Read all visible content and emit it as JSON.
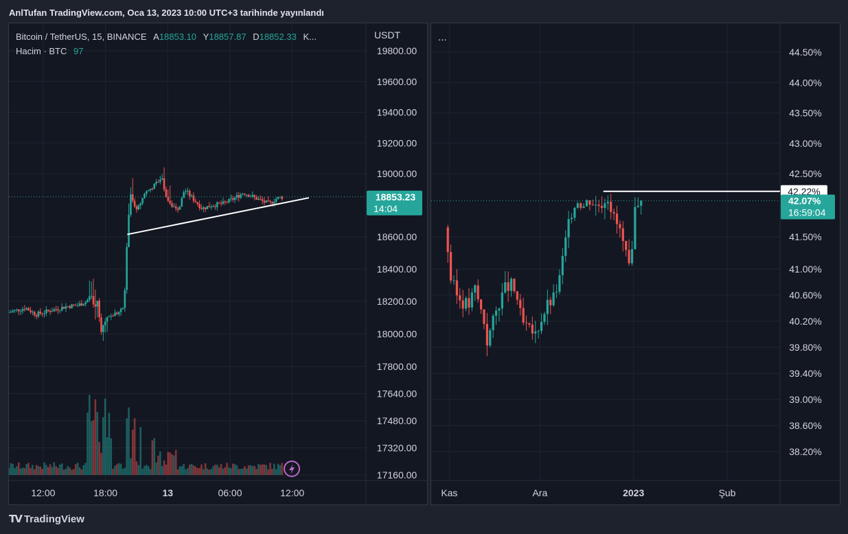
{
  "header": {
    "title": "AnlTufan TradingView.com, Oca 13, 2023 10:00 UTC+3 tarihinde yayınlandı"
  },
  "footer": {
    "logo_text": "TradingView"
  },
  "left": {
    "symbol": "Bitcoin / TetherUS, 15, BINANCE",
    "ohlc": [
      {
        "label": "A",
        "value": "18853.10"
      },
      {
        "label": "Y",
        "value": "18857.87"
      },
      {
        "label": "D",
        "value": "18852.33"
      },
      {
        "label": "K...",
        "value": ""
      }
    ],
    "volume_label": "Hacim · BTC",
    "volume_value": "97",
    "currency": "USDT",
    "price_badge": "18853.23",
    "countdown": "14:04",
    "icon": "lightning-icon"
  },
  "right": {
    "menu_dots": "...",
    "level_badge": "42.22%",
    "price_badge": "42.07%",
    "countdown": "16:59:04"
  },
  "colors": {
    "up": "#26a69a",
    "down": "#ef5350",
    "background": "#131722",
    "grid": "#1f2430"
  },
  "chart_data": [
    {
      "type": "candlestick",
      "symbol": "Bitcoin / TetherUS",
      "timeframe": "15",
      "exchange": "BINANCE",
      "y_ticks": [
        19800,
        19600,
        19400,
        19200,
        19000,
        18600,
        18400,
        18200,
        18000,
        17800,
        17640,
        17480,
        17320,
        17160
      ],
      "y_tick_labels": [
        "19800.00",
        "19600.00",
        "19400.00",
        "19200.00",
        "19000.00",
        "18600.00",
        "18400.00",
        "18200.00",
        "18000.00",
        "17800.00",
        "17640.00",
        "17480.00",
        "17320.00",
        "17160.00"
      ],
      "x_ticks": [
        12,
        18,
        24,
        30,
        36
      ],
      "x_tick_labels": [
        "12:00",
        "18:00",
        "13",
        "06:00",
        "12:00"
      ],
      "x_range": [
        8.7,
        43.1
      ],
      "last_price": 18853.23,
      "trendline": {
        "start": {
          "x": 20.1,
          "price": 18615
        },
        "end": {
          "x": 37.6,
          "price": 18847
        }
      },
      "price_anchors": [
        [
          8.7,
          18130
        ],
        [
          10.5,
          18160
        ],
        [
          11.5,
          18120
        ],
        [
          13.0,
          18145
        ],
        [
          14.5,
          18170
        ],
        [
          15.5,
          18175
        ],
        [
          16.4,
          18200
        ],
        [
          16.8,
          18250
        ],
        [
          17.1,
          18140
        ],
        [
          17.4,
          18200
        ],
        [
          17.8,
          18020
        ],
        [
          18.3,
          18100
        ],
        [
          19.0,
          18120
        ],
        [
          19.7,
          18140
        ],
        [
          20.0,
          18180
        ],
        [
          20.3,
          18620
        ],
        [
          20.6,
          18870
        ],
        [
          21.2,
          18760
        ],
        [
          22.0,
          18880
        ],
        [
          23.0,
          18930
        ],
        [
          23.6,
          18980
        ],
        [
          24.0,
          18860
        ],
        [
          24.5,
          18800
        ],
        [
          25.3,
          18780
        ],
        [
          25.8,
          18900
        ],
        [
          26.5,
          18850
        ],
        [
          27.5,
          18780
        ],
        [
          28.5,
          18800
        ],
        [
          29.5,
          18810
        ],
        [
          30.5,
          18840
        ],
        [
          31.5,
          18880
        ],
        [
          32.5,
          18850
        ],
        [
          33.5,
          18820
        ],
        [
          34.0,
          18810
        ],
        [
          34.6,
          18840
        ],
        [
          35.1,
          18850
        ]
      ],
      "volume_max_btc": 1280
    },
    {
      "type": "candlestick",
      "unit": "%",
      "y_ticks": [
        44.5,
        44.0,
        43.5,
        43.0,
        42.5,
        41.5,
        41.0,
        40.6,
        40.2,
        39.8,
        39.4,
        39.0,
        38.6,
        38.2
      ],
      "y_tick_labels": [
        "44.50%",
        "44.00%",
        "43.50%",
        "43.00%",
        "42.50%",
        "41.50%",
        "41.00%",
        "40.60%",
        "40.20%",
        "39.80%",
        "39.40%",
        "39.00%",
        "38.60%",
        "38.20%"
      ],
      "x_ticks": [
        0.5,
        30.5,
        61.5,
        92.5
      ],
      "x_tick_labels": [
        "Kas",
        "Ara",
        "2023",
        "Şub"
      ],
      "x_range": [
        -5.5,
        110
      ],
      "last_value": 42.07,
      "resistance_level": 42.22,
      "resistance_x_range": [
        51.5,
        110
      ],
      "value_anchors": [
        [
          0,
          41.65
        ],
        [
          1,
          41.3
        ],
        [
          2,
          40.85
        ],
        [
          4,
          40.6
        ],
        [
          6,
          40.5
        ],
        [
          8,
          40.45
        ],
        [
          10,
          40.7
        ],
        [
          13,
          40.2
        ],
        [
          14,
          39.9
        ],
        [
          16,
          40.2
        ],
        [
          18,
          40.5
        ],
        [
          20,
          40.7
        ],
        [
          22,
          40.75
        ],
        [
          24,
          40.55
        ],
        [
          25,
          40.3
        ],
        [
          26,
          40.15
        ],
        [
          28,
          40.05
        ],
        [
          30,
          40.0
        ],
        [
          32,
          40.25
        ],
        [
          34,
          40.45
        ],
        [
          36,
          40.55
        ],
        [
          38,
          40.85
        ],
        [
          40,
          41.45
        ],
        [
          42,
          41.9
        ],
        [
          44,
          42.1
        ],
        [
          46,
          42.0
        ],
        [
          48,
          42.1
        ],
        [
          50,
          42.0
        ],
        [
          52,
          42.05
        ],
        [
          54,
          42.15
        ],
        [
          56,
          41.8
        ],
        [
          58,
          41.6
        ],
        [
          60,
          41.2
        ],
        [
          61,
          41.0
        ],
        [
          62,
          41.2
        ],
        [
          63,
          41.95
        ],
        [
          64,
          42.07
        ]
      ]
    }
  ]
}
